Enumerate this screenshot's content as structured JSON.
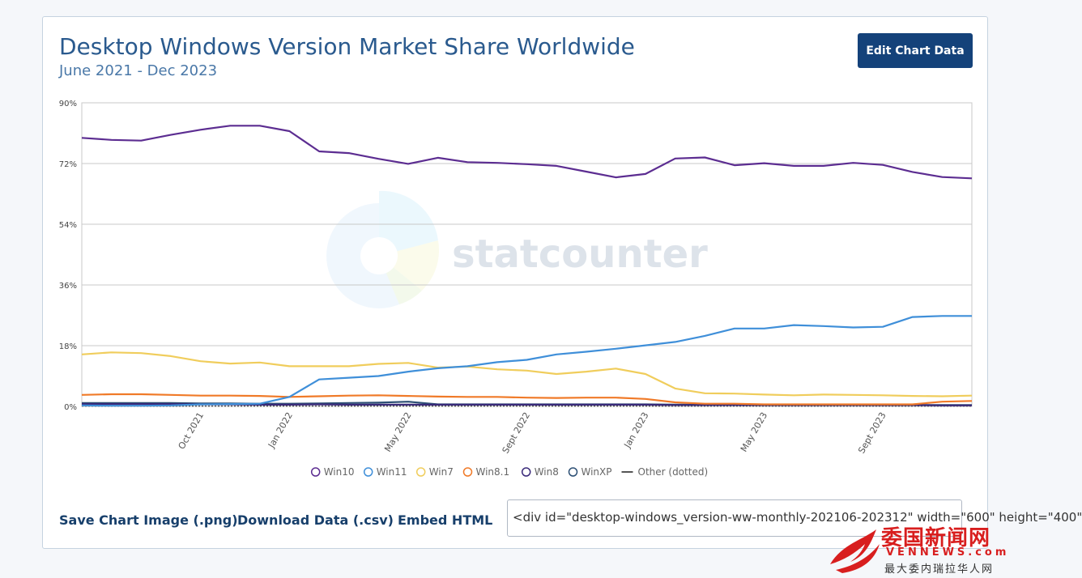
{
  "header": {
    "title": "Desktop Windows Version Market Share Worldwide",
    "subtitle": "June 2021 - Dec 2023",
    "edit_label": "Edit Chart Data"
  },
  "footer": {
    "save_label": "Save Chart Image (.png)",
    "download_label": "Download Data (.csv)",
    "embed_label": "Embed HTML",
    "embed_value": "<div id=\"desktop-windows_version-ww-monthly-202106-202312\" width=\"600\" height=\"400\""
  },
  "watermark": {
    "brand": "statcounter",
    "site_cn": "委国新闻网",
    "site_en": "VENNEWS.com",
    "site_sub": "最大委内瑞拉华人网"
  },
  "chart_data": {
    "type": "line",
    "title": "Desktop Windows Version Market Share Worldwide",
    "subtitle": "June 2021 - Dec 2023",
    "x": [
      "2021-06",
      "2021-07",
      "2021-08",
      "2021-09",
      "2021-10",
      "2021-11",
      "2021-12",
      "2022-01",
      "2022-02",
      "2022-03",
      "2022-04",
      "2022-05",
      "2022-06",
      "2022-07",
      "2022-08",
      "2022-09",
      "2022-10",
      "2022-11",
      "2022-12",
      "2023-01",
      "2023-02",
      "2023-03",
      "2023-04",
      "2023-05",
      "2023-06",
      "2023-07",
      "2023-08",
      "2023-09",
      "2023-10",
      "2023-11",
      "2023-12"
    ],
    "x_tick_labels": [
      {
        "label": "Oct 2021",
        "at": "2021-10"
      },
      {
        "label": "Jan 2022",
        "at": "2022-01"
      },
      {
        "label": "May 2022",
        "at": "2022-05"
      },
      {
        "label": "Sept 2022",
        "at": "2022-09"
      },
      {
        "label": "Jan 2023",
        "at": "2023-01"
      },
      {
        "label": "May 2023",
        "at": "2023-05"
      },
      {
        "label": "Sept 2023",
        "at": "2023-09"
      }
    ],
    "y_ticks": [
      0,
      18,
      36,
      54,
      72,
      90
    ],
    "y_tick_labels": [
      "0%",
      "18%",
      "36%",
      "54%",
      "72%",
      "90%"
    ],
    "ylim": [
      0,
      90
    ],
    "grid": true,
    "legend_position": "bottom",
    "series": [
      {
        "name": "Win10",
        "color": "#5c2d91",
        "dash": false,
        "values": [
          79.6,
          79.0,
          78.8,
          80.5,
          82.0,
          83.2,
          83.2,
          81.6,
          75.6,
          75.1,
          73.4,
          71.9,
          73.7,
          72.4,
          72.2,
          71.8,
          71.3,
          69.6,
          67.9,
          68.9,
          73.5,
          73.8,
          71.5,
          72.1,
          71.3,
          71.3,
          72.2,
          71.6,
          69.5,
          68.0,
          67.6
        ]
      },
      {
        "name": "Win11",
        "color": "#3f8fd9",
        "dash": false,
        "values": [
          0.3,
          0.2,
          0.2,
          0.3,
          0.6,
          0.7,
          0.8,
          2.8,
          8.0,
          8.5,
          9.0,
          10.3,
          11.3,
          11.9,
          13.1,
          13.8,
          15.4,
          16.2,
          17.1,
          18.1,
          19.1,
          20.9,
          23.1,
          23.1,
          24.1,
          23.8,
          23.4,
          23.6,
          26.5,
          26.8,
          26.8
        ]
      },
      {
        "name": "Win7",
        "color": "#f0cd5c",
        "dash": false,
        "values": [
          15.4,
          16.0,
          15.8,
          14.9,
          13.4,
          12.7,
          13.0,
          11.9,
          11.9,
          11.9,
          12.6,
          12.9,
          11.5,
          11.8,
          11.0,
          10.6,
          9.6,
          10.3,
          11.2,
          9.6,
          5.3,
          3.9,
          3.8,
          3.5,
          3.3,
          3.5,
          3.4,
          3.3,
          3.1,
          3.0,
          3.2
        ]
      },
      {
        "name": "Win8.1",
        "color": "#f07a28",
        "dash": false,
        "values": [
          3.4,
          3.6,
          3.6,
          3.4,
          3.2,
          3.2,
          3.1,
          2.8,
          3.0,
          3.2,
          3.3,
          3.1,
          2.9,
          2.8,
          2.8,
          2.6,
          2.5,
          2.6,
          2.6,
          2.2,
          1.2,
          0.8,
          0.8,
          0.6,
          0.6,
          0.6,
          0.6,
          0.6,
          0.6,
          1.4,
          1.6
        ]
      },
      {
        "name": "Win8",
        "color": "#3a2a7a",
        "dash": false,
        "values": [
          0.7,
          0.7,
          0.7,
          0.7,
          0.6,
          0.6,
          0.5,
          0.5,
          0.6,
          0.5,
          0.5,
          0.5,
          0.5,
          0.5,
          0.5,
          0.5,
          0.5,
          0.5,
          0.5,
          0.5,
          0.4,
          0.4,
          0.4,
          0.4,
          0.4,
          0.4,
          0.4,
          0.4,
          0.4,
          0.3,
          0.3
        ]
      },
      {
        "name": "WinXP",
        "color": "#2c4f74",
        "dash": false,
        "values": [
          1.0,
          1.0,
          1.0,
          1.0,
          0.9,
          0.9,
          0.8,
          0.8,
          0.9,
          1.0,
          1.1,
          1.4,
          0.6,
          0.6,
          0.6,
          0.6,
          0.6,
          0.6,
          0.6,
          0.6,
          0.5,
          0.5,
          0.5,
          0.4,
          0.4,
          0.4,
          0.4,
          0.4,
          0.4,
          0.4,
          0.4
        ]
      },
      {
        "name": "Other (dotted)",
        "color": "#555555",
        "dash": true,
        "values": [
          0.1,
          0.1,
          0.1,
          0.1,
          0.1,
          0.1,
          0.1,
          0.1,
          0.1,
          0.1,
          0.1,
          0.1,
          0.1,
          0.1,
          0.1,
          0.1,
          0.1,
          0.1,
          0.1,
          0.1,
          0.1,
          0.1,
          0.1,
          0.1,
          0.1,
          0.1,
          0.1,
          0.1,
          0.1,
          0.1,
          0.1
        ]
      }
    ]
  }
}
